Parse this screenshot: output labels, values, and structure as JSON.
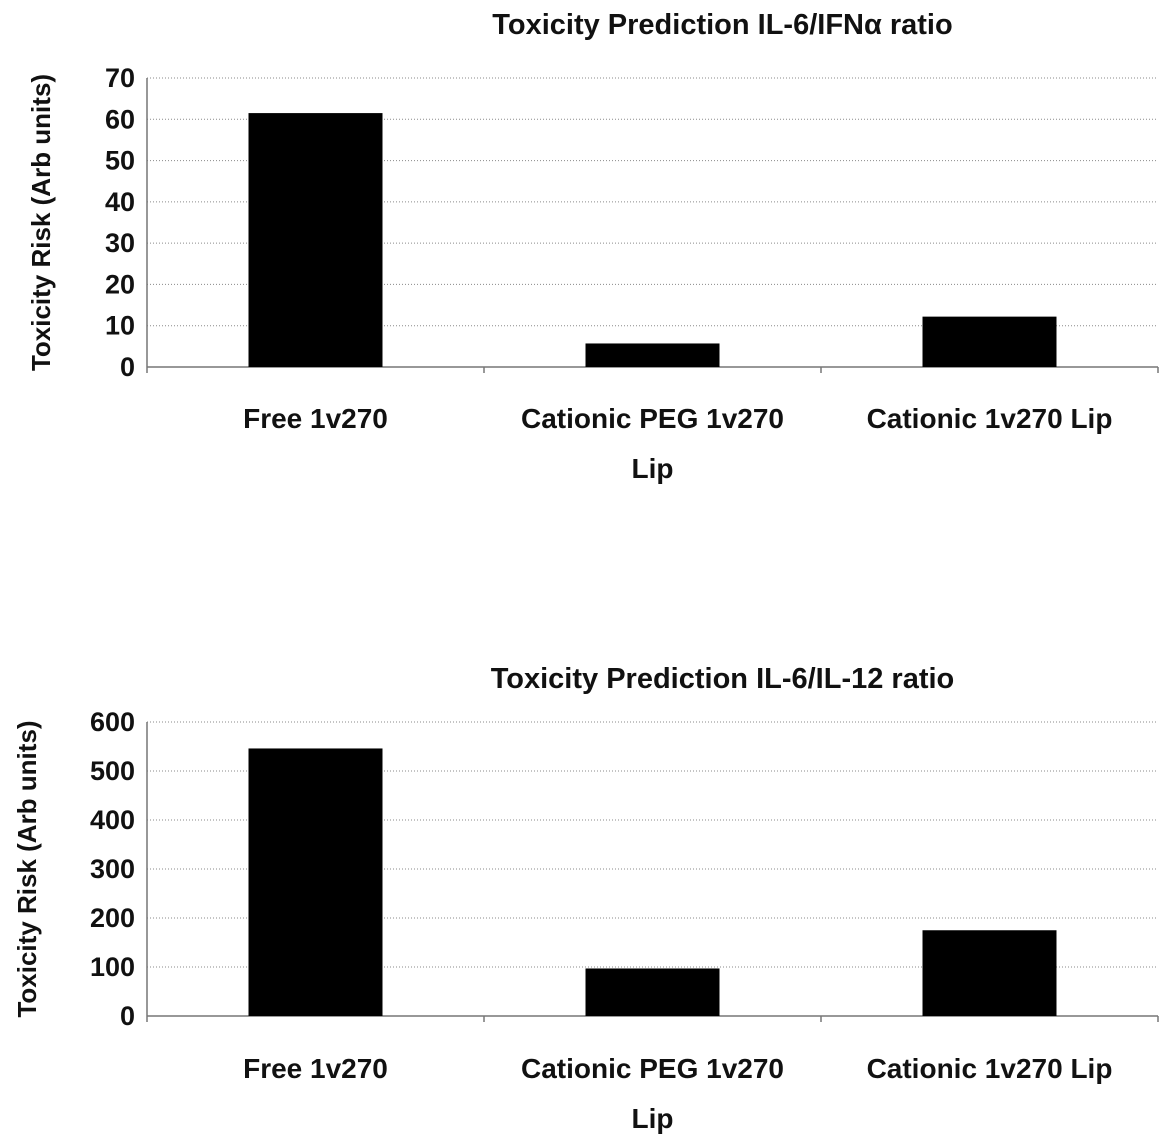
{
  "chart_data": [
    {
      "type": "bar",
      "title": "Toxicity Prediction IL-6/IFNα ratio",
      "xlabel": "",
      "ylabel": "Toxicity Risk (Arb units)",
      "categories": [
        [
          "Free 1v270"
        ],
        [
          "Cationic PEG 1v270",
          "Lip"
        ],
        [
          "Cationic 1v270 Lip"
        ]
      ],
      "values": [
        61.5,
        5.7,
        12.2
      ],
      "ylim": [
        0,
        70
      ],
      "yticks": [
        0,
        10,
        20,
        30,
        40,
        50,
        60,
        70
      ],
      "grid": true,
      "bar_color": "#000000"
    },
    {
      "type": "bar",
      "title": "Toxicity Prediction IL-6/IL-12 ratio",
      "xlabel": "",
      "ylabel": "Toxicity Risk (Arb units)",
      "categories": [
        [
          "Free 1v270"
        ],
        [
          "Cationic PEG 1v270",
          "Lip"
        ],
        [
          "Cationic 1v270 Lip"
        ]
      ],
      "values": [
        546,
        97,
        175
      ],
      "ylim": [
        0,
        600
      ],
      "yticks": [
        0,
        100,
        200,
        300,
        400,
        500,
        600
      ],
      "grid": true,
      "bar_color": "#000000"
    }
  ]
}
